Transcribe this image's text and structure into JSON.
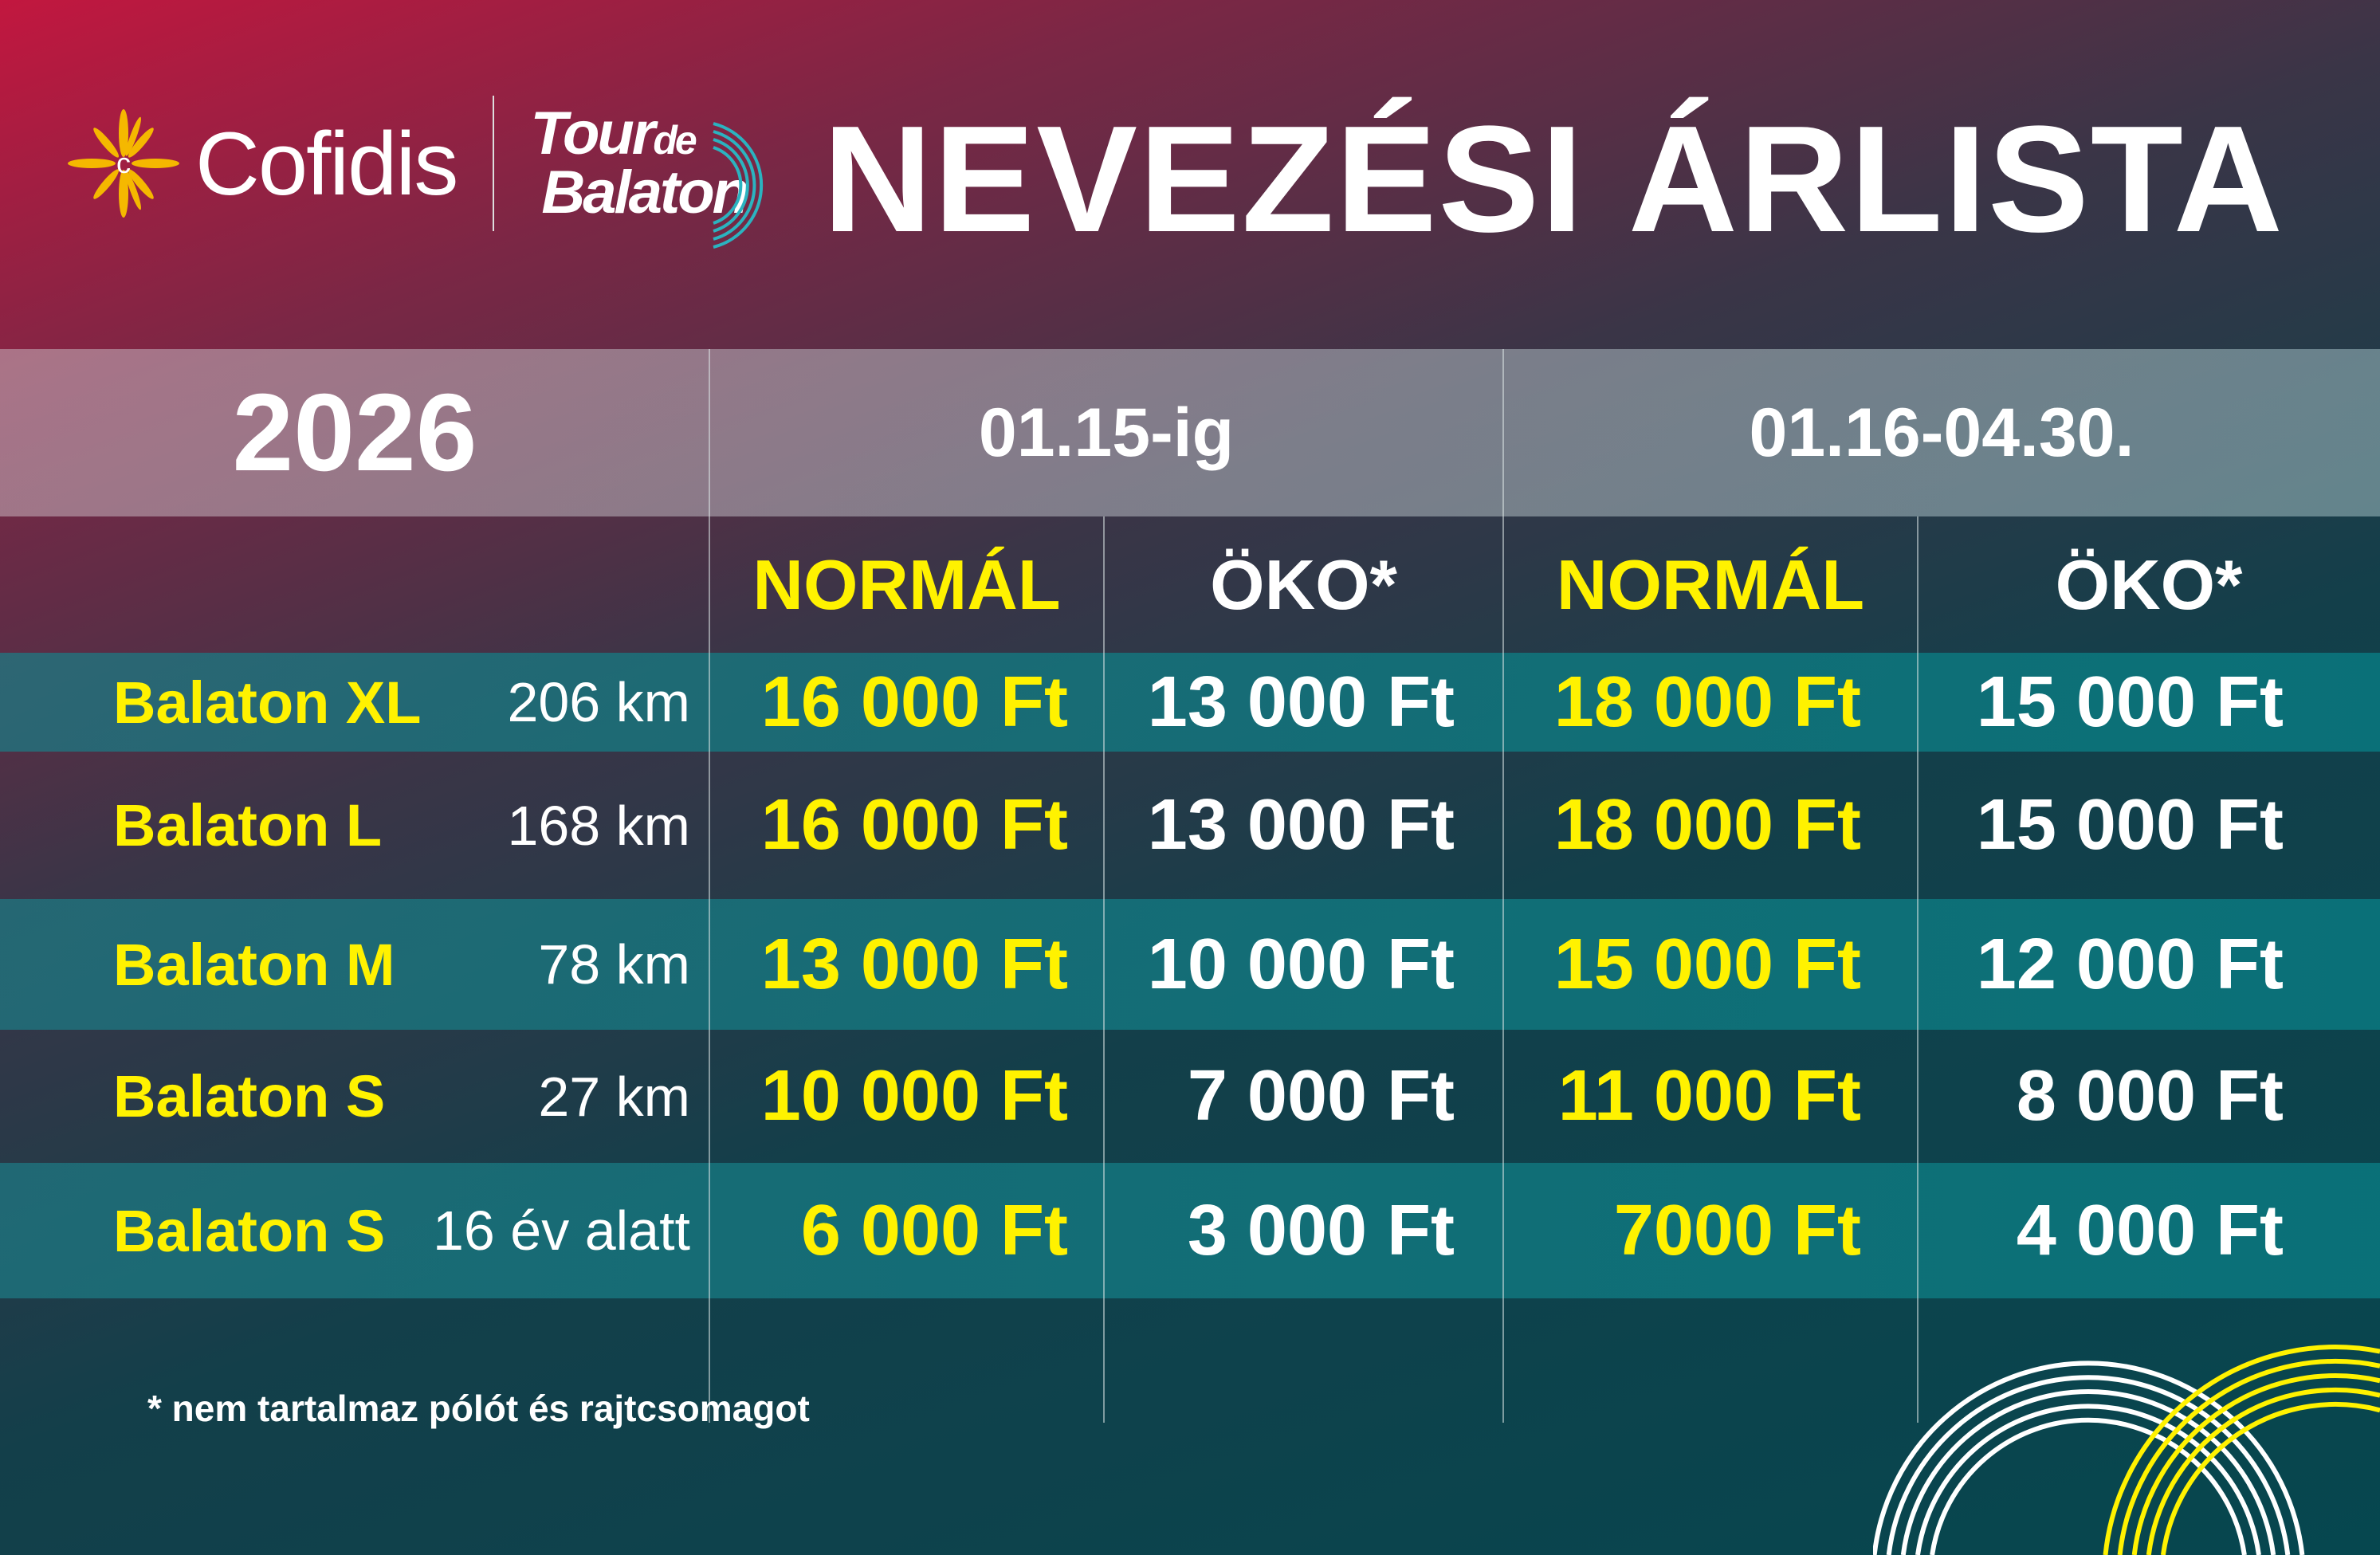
{
  "header": {
    "sponsor": "Cofidis",
    "event_logo_line1": "Tour",
    "event_logo_de": "de",
    "event_logo_line2": "Balaton",
    "title": "NEVEZÉSI ÁRLISTA"
  },
  "year": "2026",
  "periods": [
    "01.15-ig",
    "01.16-04.30."
  ],
  "columns": [
    "NORMÁL",
    "ÖKO*",
    "NORMÁL",
    "ÖKO*"
  ],
  "rows": [
    {
      "name": "Balaton XL",
      "distance": "206 km",
      "prices": [
        "16 000 Ft",
        "13 000 Ft",
        "18 000 Ft",
        "15 000 Ft"
      ]
    },
    {
      "name": "Balaton L",
      "distance": "168 km",
      "prices": [
        "16 000 Ft",
        "13 000 Ft",
        "18 000 Ft",
        "15 000 Ft"
      ]
    },
    {
      "name": "Balaton M",
      "distance": "78 km",
      "prices": [
        "13 000 Ft",
        "10 000 Ft",
        "15 000 Ft",
        "12 000 Ft"
      ]
    },
    {
      "name": "Balaton S",
      "distance": "27 km",
      "prices": [
        "10 000 Ft",
        "7 000 Ft",
        "11 000 Ft",
        "8 000 Ft"
      ]
    },
    {
      "name": "Balaton S",
      "distance": "16 év alatt",
      "prices": [
        "6 000 Ft",
        "3 000 Ft",
        "7000 Ft",
        "4 000 Ft"
      ]
    }
  ],
  "footnote": "* nem tartalmaz pólót és rajtcsomagot",
  "colors": {
    "accent_yellow": "#fff200",
    "teal_row": "#0f7178",
    "logo_teal": "#2bb3c0",
    "sun": "#f5b800"
  }
}
